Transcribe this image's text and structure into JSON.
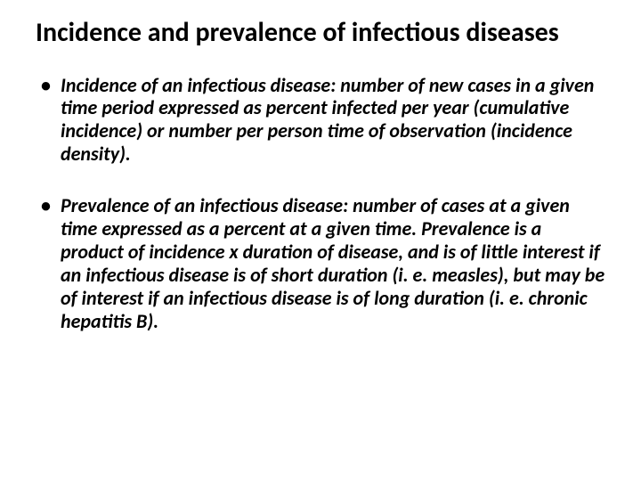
{
  "slide": {
    "title": "Incidence and prevalence of infectious diseases",
    "bullets": [
      "Incidence of an infectious disease: number of new cases in a given time period expressed as percent infected per year (cumulative incidence) or number per person time of observation (incidence density).",
      "Prevalence of an infectious disease: number of cases at a given time expressed as a percent at a given time. Prevalence is a product of incidence x duration of disease, and is of little interest if an infectious disease is of short duration (i. e. measles), but may be of interest if an infectious disease is of long duration (i. e. chronic hepatitis B)."
    ]
  },
  "styling": {
    "background_color": "#ffffff",
    "text_color": "#000000",
    "title_fontsize": 30,
    "body_fontsize": 22,
    "title_fontweight": "bold",
    "body_fontweight": "bold",
    "body_fontstyle": "italic",
    "font_family": "Calibri"
  }
}
